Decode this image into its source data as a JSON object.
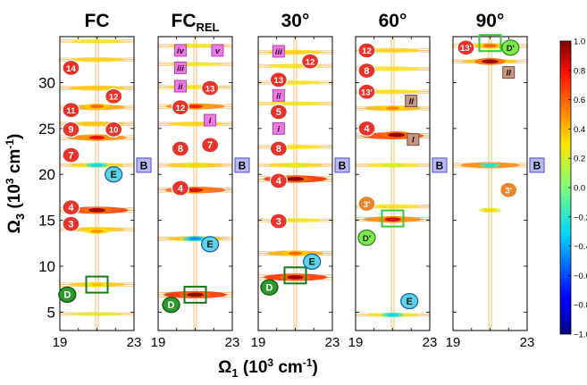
{
  "chart_data": {
    "type": "heatmap",
    "title": "",
    "xlabel": "Ω",
    "xlabel_sub": "1",
    "xlabel_unit": " (10",
    "xlabel_exp": "3",
    "xlabel_tail": " cm",
    "xlabel_exp2": "-1",
    "xlabel_close": ")",
    "ylabel": "Ω",
    "ylabel_sub": "3",
    "ylabel_unit": " (10",
    "ylabel_exp": "3",
    "ylabel_tail": " cm",
    "ylabel_exp2": "-1",
    "ylabel_close": ")",
    "xlim": [
      19,
      23
    ],
    "ylim": [
      3,
      35
    ],
    "x_tick_labels": [
      "19",
      "23"
    ],
    "y_ticks": [
      5,
      10,
      15,
      20,
      25,
      30
    ],
    "y_tick_labels": [
      "5",
      "10",
      "15",
      "20",
      "25",
      "30"
    ],
    "grid": false,
    "colorbar": {
      "range": [
        -1.0,
        1.0
      ],
      "ticks": [
        1.0,
        0.8,
        0.6,
        0.4,
        0.2,
        0.0,
        -0.2,
        -0.4,
        -0.6,
        -0.8,
        -1.0
      ],
      "tick_labels": [
        "1.0",
        "0.8",
        "0.6",
        "0.4",
        "0.2",
        "0.0",
        "−0.2",
        "−0.4",
        "−0.6",
        "−0.8",
        "−1.0"
      ],
      "colormap": "jet"
    },
    "panels": [
      {
        "title": "FC",
        "title_sub": "",
        "lines": [
          {
            "y": 34.5,
            "amp": 0.35
          },
          {
            "y": 32.5,
            "amp": 0.45
          },
          {
            "y": 29.4,
            "amp": 0.5
          },
          {
            "y": 27.3,
            "amp": 0.6
          },
          {
            "y": 25.5,
            "amp": 0.5
          },
          {
            "y": 24.0,
            "amp": 0.7
          },
          {
            "y": 21.0,
            "amp": 0.45
          },
          {
            "y": 16.1,
            "amp": 0.9
          },
          {
            "y": 14.0,
            "amp": 0.5
          },
          {
            "y": 8.0,
            "amp": 0.5
          },
          {
            "y": 4.8,
            "amp": 0.3
          }
        ],
        "peaks": [
          {
            "x": 21.0,
            "y": 24.0,
            "v": 0.8
          },
          {
            "x": 21.0,
            "y": 21.0,
            "v": -0.3
          },
          {
            "x": 21.0,
            "y": 16.1,
            "v": 0.95
          },
          {
            "x": 21.0,
            "y": 27.4,
            "v": 0.6
          },
          {
            "x": 21.0,
            "y": 8.0,
            "v": 0.4
          },
          {
            "x": 21.0,
            "y": 13.8,
            "v": 0.5
          }
        ],
        "markers": [
          {
            "text": "14",
            "x": 19.6,
            "y": 31.6,
            "kind": "red"
          },
          {
            "text": "12",
            "x": 21.9,
            "y": 28.5,
            "kind": "red"
          },
          {
            "text": "11",
            "x": 19.6,
            "y": 27.0,
            "kind": "red"
          },
          {
            "text": "10",
            "x": 21.9,
            "y": 24.9,
            "kind": "red"
          },
          {
            "text": "9",
            "x": 19.6,
            "y": 24.9,
            "kind": "red"
          },
          {
            "text": "7",
            "x": 19.6,
            "y": 22.1,
            "kind": "red"
          },
          {
            "text": "4",
            "x": 19.6,
            "y": 16.4,
            "kind": "red"
          },
          {
            "text": "3",
            "x": 19.6,
            "y": 14.6,
            "kind": "red"
          },
          {
            "text": "E",
            "x": 21.9,
            "y": 20.0,
            "kind": "cyan"
          },
          {
            "text": "D",
            "x": 19.4,
            "y": 6.9,
            "kind": "green"
          }
        ],
        "boxes": [
          {
            "x": 21.0,
            "y": 8.0,
            "color": "#1a7a1a"
          }
        ]
      },
      {
        "title": "FC",
        "title_sub": "REL",
        "lines": [
          {
            "y": 34.0,
            "amp": 0.35
          },
          {
            "y": 32.0,
            "amp": 0.35
          },
          {
            "y": 29.5,
            "amp": 0.4
          },
          {
            "y": 27.4,
            "amp": 0.7
          },
          {
            "y": 25.5,
            "amp": 0.45
          },
          {
            "y": 21.0,
            "amp": 0.5
          },
          {
            "y": 18.3,
            "amp": 0.8
          },
          {
            "y": 13.0,
            "amp": 0.5
          },
          {
            "y": 6.9,
            "amp": 0.95
          }
        ],
        "peaks": [
          {
            "x": 21.0,
            "y": 27.4,
            "v": 0.75
          },
          {
            "x": 21.0,
            "y": 21.0,
            "v": 0.35
          },
          {
            "x": 21.0,
            "y": 18.3,
            "v": 0.85
          },
          {
            "x": 21.0,
            "y": 13.0,
            "v": -0.45
          },
          {
            "x": 21.0,
            "y": 6.9,
            "v": 0.98
          }
        ],
        "markers": [
          {
            "text": "iv",
            "x": 20.2,
            "y": 33.5,
            "kind": "pink"
          },
          {
            "text": "v",
            "x": 22.2,
            "y": 33.5,
            "kind": "pink"
          },
          {
            "text": "iii",
            "x": 20.2,
            "y": 31.6,
            "kind": "pink"
          },
          {
            "text": "ii",
            "x": 20.2,
            "y": 29.6,
            "kind": "pink"
          },
          {
            "text": "13",
            "x": 21.8,
            "y": 29.4,
            "kind": "red"
          },
          {
            "text": "12",
            "x": 20.2,
            "y": 27.3,
            "kind": "red"
          },
          {
            "text": "i",
            "x": 21.8,
            "y": 25.9,
            "kind": "pink"
          },
          {
            "text": "8",
            "x": 20.2,
            "y": 22.8,
            "kind": "red"
          },
          {
            "text": "7",
            "x": 21.8,
            "y": 23.2,
            "kind": "red"
          },
          {
            "text": "4",
            "x": 20.2,
            "y": 18.5,
            "kind": "red"
          },
          {
            "text": "E",
            "x": 21.8,
            "y": 12.4,
            "kind": "cyan"
          },
          {
            "text": "D",
            "x": 19.7,
            "y": 5.8,
            "kind": "green"
          }
        ],
        "boxes": [
          {
            "x": 21.0,
            "y": 6.9,
            "color": "#1a7a1a"
          }
        ]
      },
      {
        "title": "30°",
        "title_sub": "",
        "lines": [
          {
            "y": 33.3,
            "amp": 0.45
          },
          {
            "y": 31.8,
            "amp": 0.4
          },
          {
            "y": 30.0,
            "amp": 0.35
          },
          {
            "y": 27.7,
            "amp": 0.35
          },
          {
            "y": 23.0,
            "amp": 0.4
          },
          {
            "y": 21.0,
            "amp": 0.45
          },
          {
            "y": 19.5,
            "amp": 0.95
          },
          {
            "y": 15.0,
            "amp": 0.35
          },
          {
            "y": 11.4,
            "amp": 0.6
          },
          {
            "y": 8.8,
            "amp": 0.95
          }
        ],
        "peaks": [
          {
            "x": 21.0,
            "y": 19.5,
            "v": 0.98
          },
          {
            "x": 21.0,
            "y": 21.0,
            "v": 0.3
          },
          {
            "x": 21.0,
            "y": 8.8,
            "v": 0.95
          },
          {
            "x": 21.0,
            "y": 11.4,
            "v": 0.6
          }
        ],
        "markers": [
          {
            "text": "iii",
            "x": 20.1,
            "y": 33.4,
            "kind": "pink"
          },
          {
            "text": "12",
            "x": 21.8,
            "y": 32.3,
            "kind": "red"
          },
          {
            "text": "13",
            "x": 20.1,
            "y": 30.3,
            "kind": "red"
          },
          {
            "text": "ii",
            "x": 20.1,
            "y": 28.6,
            "kind": "pink"
          },
          {
            "text": "5",
            "x": 20.1,
            "y": 26.8,
            "kind": "red"
          },
          {
            "text": "i",
            "x": 20.1,
            "y": 25.0,
            "kind": "pink"
          },
          {
            "text": "8",
            "x": 20.1,
            "y": 22.8,
            "kind": "red"
          },
          {
            "text": "4",
            "x": 20.1,
            "y": 19.3,
            "kind": "red"
          },
          {
            "text": "3",
            "x": 20.1,
            "y": 14.9,
            "kind": "red"
          },
          {
            "text": "E",
            "x": 21.9,
            "y": 10.5,
            "kind": "cyan"
          },
          {
            "text": "D",
            "x": 19.6,
            "y": 7.7,
            "kind": "green"
          }
        ],
        "boxes": [
          {
            "x": 21.0,
            "y": 9.0,
            "color": "#1a7a1a"
          }
        ]
      },
      {
        "title": "60°",
        "title_sub": "",
        "lines": [
          {
            "y": 33.5,
            "amp": 0.45
          },
          {
            "y": 31.5,
            "amp": 0.4
          },
          {
            "y": 29.0,
            "amp": 0.4
          },
          {
            "y": 27.2,
            "amp": 0.55
          },
          {
            "y": 24.2,
            "amp": 0.9
          },
          {
            "y": 21.0,
            "amp": 0.4
          },
          {
            "y": 16.5,
            "amp": 0.4
          },
          {
            "y": 15.1,
            "amp": 0.7
          },
          {
            "y": 4.7,
            "amp": 0.35
          }
        ],
        "peaks": [
          {
            "x": 21.2,
            "y": 24.3,
            "v": 0.97
          },
          {
            "x": 21.0,
            "y": 27.2,
            "v": 0.55
          },
          {
            "x": 21.0,
            "y": 15.1,
            "v": 0.85
          },
          {
            "x": 21.0,
            "y": 4.7,
            "v": -0.3
          },
          {
            "x": 21.0,
            "y": 21.0,
            "v": 0.25
          }
        ],
        "markers": [
          {
            "text": "12",
            "x": 19.6,
            "y": 33.5,
            "kind": "red"
          },
          {
            "text": "8",
            "x": 19.6,
            "y": 31.3,
            "kind": "red"
          },
          {
            "text": "13'",
            "x": 19.6,
            "y": 29.0,
            "kind": "red"
          },
          {
            "text": "II",
            "x": 22.0,
            "y": 28.0,
            "kind": "brown"
          },
          {
            "text": "4",
            "x": 19.6,
            "y": 25.0,
            "kind": "red"
          },
          {
            "text": "I",
            "x": 22.1,
            "y": 23.8,
            "kind": "brown"
          },
          {
            "text": "3'",
            "x": 19.6,
            "y": 16.8,
            "kind": "orange"
          },
          {
            "text": "D'",
            "x": 19.6,
            "y": 13.1,
            "kind": "lgreen"
          },
          {
            "text": "E",
            "x": 21.9,
            "y": 6.2,
            "kind": "cyan"
          }
        ],
        "boxes": [
          {
            "x": 21.0,
            "y": 15.2,
            "color": "#33cc33"
          }
        ]
      },
      {
        "title": "90°",
        "title_sub": "",
        "lines": [
          {
            "y": 34.0,
            "amp": 0.5
          },
          {
            "y": 32.3,
            "amp": 0.5
          },
          {
            "y": 21.0,
            "amp": 0.7
          }
        ],
        "peaks": [
          {
            "x": 21.0,
            "y": 32.3,
            "v": 0.95
          },
          {
            "x": 21.0,
            "y": 34.0,
            "v": 0.6
          },
          {
            "x": 21.0,
            "y": 21.0,
            "v": -0.25
          },
          {
            "x": 21.0,
            "y": 16.1,
            "v": 0.35
          }
        ],
        "markers": [
          {
            "text": "13'",
            "x": 19.7,
            "y": 33.8,
            "kind": "red"
          },
          {
            "text": "D'",
            "x": 22.1,
            "y": 33.8,
            "kind": "lgreen"
          },
          {
            "text": "II",
            "x": 22.0,
            "y": 31.1,
            "kind": "brown"
          },
          {
            "text": "3'",
            "x": 22.0,
            "y": 18.3,
            "kind": "orange"
          }
        ],
        "boxes": [
          {
            "x": 21.0,
            "y": 34.3,
            "color": "#33cc33"
          }
        ]
      }
    ],
    "b_label": "B",
    "b_label_y": 21.0
  }
}
